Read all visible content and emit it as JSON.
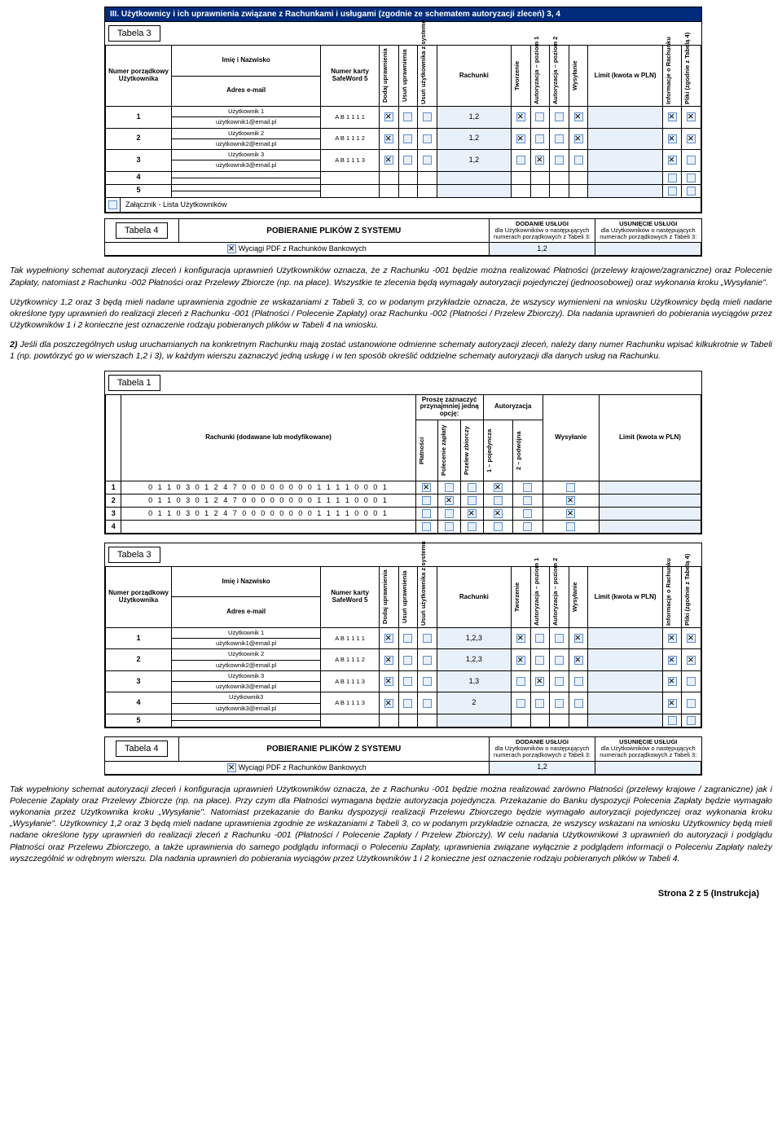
{
  "colors": {
    "header_bg": "#002b7a",
    "checkbox_border": "#5b8fcf",
    "checkbox_bg": "#e8f0fa"
  },
  "section3": {
    "title": "III. Użytkownicy i ich uprawnienia związane z Rachunkami i usługami (zgodnie ze schematem autoryzacji zleceń) 3, 4"
  },
  "tabela3_label": "Tabela 3",
  "tabela3_headers": {
    "col1": "Numer porządkowy Użytkownika",
    "col2a": "Imię i Nazwisko",
    "col2b": "Adres e-mail",
    "col3": "Numer karty SafeWord 5",
    "col4": "Dodaj uprawnienia",
    "col5": "Usuń uprawnienia",
    "col6": "Usuń użytkownika z systemu",
    "col7": "Rachunki",
    "col8": "Tworzenie",
    "col9": "Autoryzacja – poziom 1",
    "col10": "Autoryzacja – poziom 2",
    "col11": "Wysyłanie",
    "col12": "Limit (kwota w PLN)",
    "col13": "Informacje o Rachunku",
    "col14": "Pliki (zgodnie z Tabelą 4)"
  },
  "tabela3a_rows": [
    {
      "n": "1",
      "name": "Użytkownik 1",
      "email": "użytkownik1@email.pl",
      "card": "A B 1 1 1 1",
      "dodaj": true,
      "usun": false,
      "usunuz": false,
      "rach": "1,2",
      "tw": true,
      "a1": false,
      "a2": false,
      "wys": true,
      "info": true,
      "pliki": true
    },
    {
      "n": "2",
      "name": "Użytkownik 2",
      "email": "użytkownik2@email.pl",
      "card": "A B 1 1 1 2",
      "dodaj": true,
      "usun": false,
      "usunuz": false,
      "rach": "1,2",
      "tw": true,
      "a1": false,
      "a2": false,
      "wys": true,
      "info": true,
      "pliki": true
    },
    {
      "n": "3",
      "name": "Użytkownik 3",
      "email": "użytkownik3@email.pl",
      "card": "A B 1 1 1 3",
      "dodaj": true,
      "usun": false,
      "usunuz": false,
      "rach": "1,2",
      "tw": false,
      "a1": true,
      "a2": false,
      "wys": false,
      "info": true,
      "pliki": false
    },
    {
      "n": "4",
      "name": "",
      "email": "",
      "card": "",
      "dodaj": null,
      "usun": null,
      "usunuz": null,
      "rach": "",
      "tw": null,
      "a1": null,
      "a2": null,
      "wys": null,
      "info": false,
      "pliki": false
    },
    {
      "n": "5",
      "name": "",
      "email": "",
      "card": "",
      "dodaj": null,
      "usun": null,
      "usunuz": null,
      "rach": "",
      "tw": null,
      "a1": null,
      "a2": null,
      "wys": null,
      "info": false,
      "pliki": false
    }
  ],
  "zalacznik_label": "Załącznik - Lista Użytkowników",
  "zalacznik_checked_a": false,
  "tabela4_label": "Tabela 4",
  "tabela4": {
    "title": "POBIERANIE PLIKÓW Z SYSTEMU",
    "dodanie_h": "DODANIE USŁUGI",
    "dodanie_sub": "dla Użytkowników o następujących numerach porządkowych z Tabeli 3:",
    "usun_h": "USUNIĘCIE USŁUGI",
    "usun_sub": "dla Użytkowników o następujących numerach porządkowych z Tabeli 3:",
    "row_label": "Wyciągi PDF z Rachunków Bankowych",
    "row_checked": true,
    "dodanie_val": "1,2",
    "usun_val": ""
  },
  "para1": "Tak wypełniony schemat autoryzacji zleceń i konfiguracja uprawnień Użytkowników oznacza, że z Rachunku -001 będzie można realizować Płatności (przelewy krajowe/zagraniczne) oraz Polecenie Zapłaty, natomiast z Rachunku -002 Płatności oraz Przelewy Zbiorcze (np. na płace). Wszystkie te zlecenia będą wymagały autoryzacji pojedynczej (jednoosobowej) oraz wykonania kroku „Wysyłanie\".",
  "para2": "Użytkownicy 1,2 oraz 3 będą mieli nadane uprawnienia zgodnie ze wskazaniami z Tabeli 3, co w podanym przykładzie oznacza, że wszyscy wymienieni na wniosku Użytkownicy będą mieli nadane określone typy uprawnień do realizacji zleceń z Rachunku -001 (Płatności / Polecenie Zapłaty) oraz Rachunku -002 (Płatności / Przelew Zbiorczy). Dla nadania uprawnień do pobierania wyciągów przez Użytkowników 1 i 2 konieczne jest oznaczenie rodzaju pobieranych plików w Tabeli 4 na wniosku.",
  "para3_lead": "2)",
  "para3": "Jeśli dla poszczególnych usług uruchamianych na konkretnym Rachunku mają zostać ustanowione odmienne schematy autoryzacji zleceń, należy dany numer Rachunku wpisać kilkukrotnie w Tabeli 1 (np. powtórzyć go w wierszach 1,2 i 3), w każdym wierszu zaznaczyć jedną usługę i w ten sposób określić oddzielne schematy autoryzacji dla danych usług na Rachunku.",
  "tabela1_label": "Tabela 1",
  "tabela1_headers": {
    "sub_a": "Proszę zaznaczyć przynajmniej jedną opcję:",
    "sub_b": "Autoryzacja",
    "rach": "Rachunki (dodawane lub modyfikowane)",
    "plat": "Płatności",
    "pol": "Polecenie zapłaty",
    "przel": "Przelew zbiorczy",
    "a1": "1 – pojedyncza",
    "a2": "2 – podwójna",
    "wys": "Wysyłanie",
    "limit": "Limit (kwota w PLN)"
  },
  "tabela1_acct": "0 1 1 0 3 0 1 2 4 7 0 0 0 0 0 0 0 0 1 1 1 1 0 0 0 1",
  "tabela1_rows": [
    {
      "n": "1",
      "plat": true,
      "pol": false,
      "przel": false,
      "a1": true,
      "a2": false,
      "wys": false
    },
    {
      "n": "2",
      "plat": false,
      "pol": true,
      "przel": false,
      "a1": false,
      "a2": false,
      "wys": true
    },
    {
      "n": "3",
      "plat": false,
      "pol": false,
      "przel": true,
      "a1": true,
      "a2": false,
      "wys": true
    },
    {
      "n": "4",
      "plat": false,
      "pol": false,
      "przel": false,
      "a1": false,
      "a2": false,
      "wys": false
    }
  ],
  "tabela3b_rows": [
    {
      "n": "1",
      "name": "Użytkownik 1",
      "email": "użytkownik1@email.pl",
      "card": "A B 1 1 1 1",
      "dodaj": true,
      "usun": false,
      "usunuz": false,
      "rach": "1,2,3",
      "tw": true,
      "a1": false,
      "a2": false,
      "wys": true,
      "info": true,
      "pliki": true
    },
    {
      "n": "2",
      "name": "Użytkownik 2",
      "email": "użytkownik2@email.pl",
      "card": "A B 1 1 1 2",
      "dodaj": true,
      "usun": false,
      "usunuz": false,
      "rach": "1,2,3",
      "tw": true,
      "a1": false,
      "a2": false,
      "wys": true,
      "info": true,
      "pliki": true
    },
    {
      "n": "3",
      "name": "Użytkownik 3",
      "email": "użytkownik3@email.pl",
      "card": "A B 1 1 1 3",
      "dodaj": true,
      "usun": false,
      "usunuz": false,
      "rach": "1,3",
      "tw": false,
      "a1": true,
      "a2": false,
      "wys": false,
      "info": true,
      "pliki": false
    },
    {
      "n": "4",
      "name": "Użytkownik3",
      "email": "użytkownik3@email.pl",
      "card": "A B 1 1 1 3",
      "dodaj": true,
      "usun": false,
      "usunuz": false,
      "rach": "2",
      "tw": false,
      "a1": false,
      "a2": false,
      "wys": false,
      "info": true,
      "pliki": false
    },
    {
      "n": "5",
      "name": "",
      "email": "",
      "card": "",
      "dodaj": null,
      "usun": null,
      "usunuz": null,
      "rach": "",
      "tw": null,
      "a1": null,
      "a2": null,
      "wys": null,
      "info": false,
      "pliki": false
    }
  ],
  "tabela4b": {
    "dodanie_val": "1,2",
    "usun_val": ""
  },
  "para4": "Tak wypełniony schemat autoryzacji zleceń i konfiguracja uprawnień Użytkowników oznacza, że z Rachunku -001 będzie można realizować zarówno Płatności (przelewy krajowe / zagraniczne) jak i Polecenie Zapłaty oraz Przelewy Zbiorcze (np. na płace). Przy czym dla Płatności wymagana będzie autoryzacja pojedyncza. Przekazanie do Banku dyspozycji Polecenia Zapłaty będzie wymagało wykonania przez Użytkownika kroku „Wysyłanie\". Natomiast przekazanie do Banku dyspozycji realizacji Przelewu Zbiorczego będzie wymagało autoryzacji pojedynczej oraz wykonania kroku „Wysyłanie\". Użytkownicy 1,2 oraz 3 będą mieli nadane uprawnienia zgodnie ze wskazaniami z Tabeli 3,  co w podanym przykładzie oznacza, że wszyscy wskazani na wniosku Użytkownicy będą mieli nadane określone typy uprawnień do realizacji zleceń z Rachunku -001 (Płatności / Polecenie Zapłaty / Przelew Zbiorczy). W celu nadania Użytkownikowi 3 uprawnień do autoryzacji i podglądu Płatności oraz Przelewu Zbiorczego, a także uprawnienia do samego podglądu informacji o Poleceniu Zapłaty, uprawnienia związane wyłącznie z podglądem informacji o Poleceniu Zapłaty należy wyszczególnić w odrębnym wierszu. Dla nadania uprawnień do pobierania wyciągów przez Użytkowników 1 i 2 konieczne jest oznaczenie rodzaju pobieranych plików w Tabeli 4.",
  "footer": "Strona 2 z 5 (Instrukcja)"
}
